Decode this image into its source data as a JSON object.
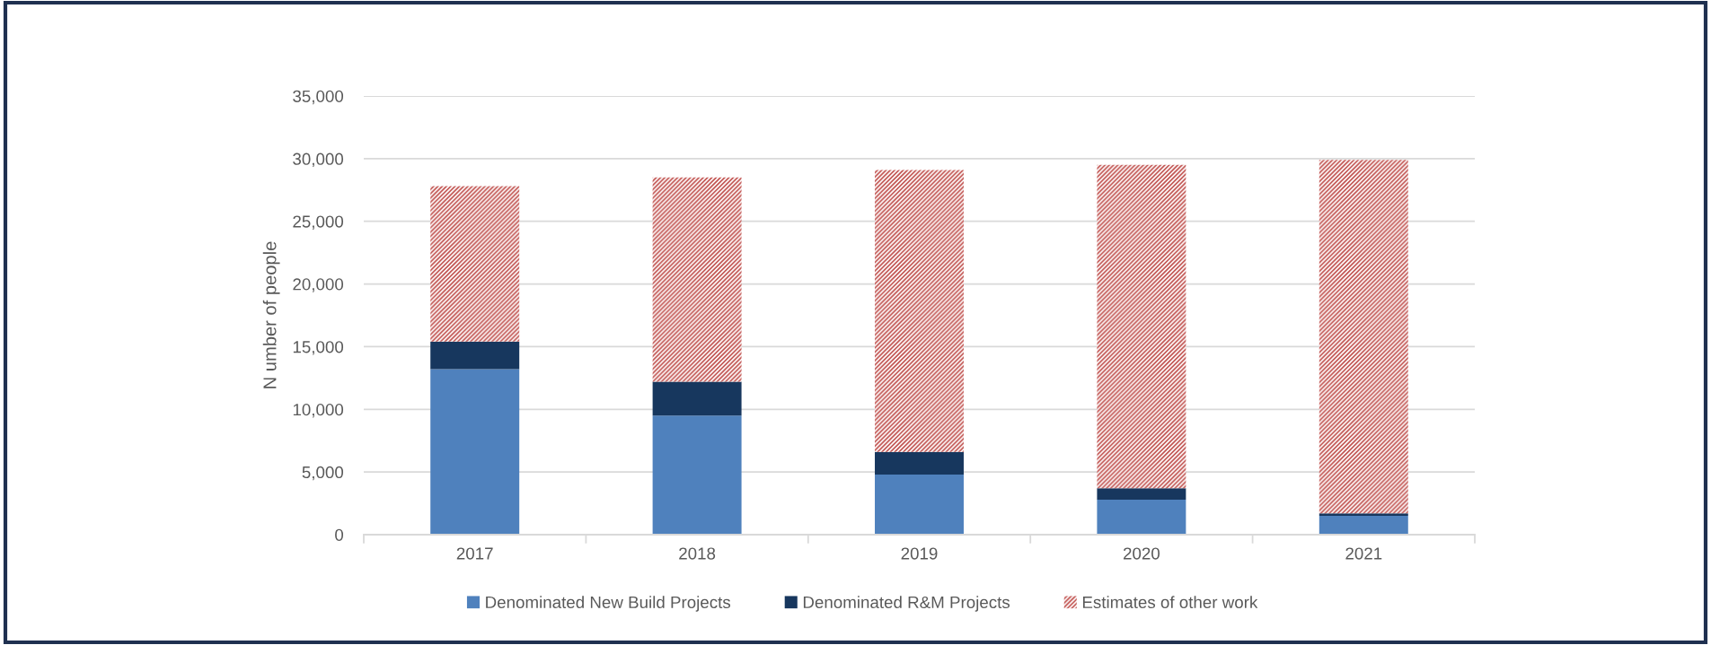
{
  "chart_data": {
    "type": "bar",
    "stacked": true,
    "categories": [
      "2017",
      "2018",
      "2019",
      "2020",
      "2021"
    ],
    "series": [
      {
        "name": "Denominated New Build Projects",
        "color": "#4f81bd",
        "values": [
          13200,
          9500,
          4800,
          2800,
          1500
        ]
      },
      {
        "name": "Denominated R&M Projects",
        "color": "#17375e",
        "values": [
          2200,
          2700,
          1800,
          900,
          200
        ]
      },
      {
        "name": "Estimates of other work",
        "color": "#c0504d",
        "values": [
          12400,
          16300,
          22500,
          25800,
          28200
        ]
      }
    ],
    "ylabel": "N umber of people",
    "ylim": [
      0,
      35000
    ],
    "yticks": [
      0,
      {
        "value": 5000,
        "label": "5,000"
      },
      {
        "value": 10000,
        "label": "10,000"
      },
      {
        "value": 15000,
        "label": "15,000"
      },
      {
        "value": 20000,
        "label": "20,000"
      },
      {
        "value": 25000,
        "label": "25,000"
      },
      {
        "value": 30000,
        "label": "30,000"
      },
      {
        "value": 35000,
        "label": "35,000"
      }
    ],
    "grid": "y",
    "legend": "bottom"
  }
}
